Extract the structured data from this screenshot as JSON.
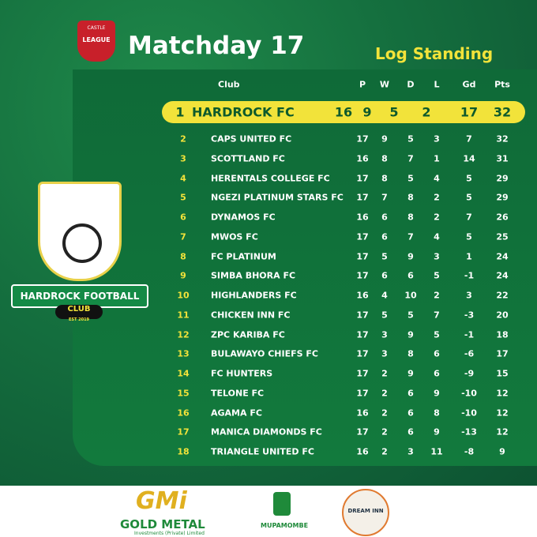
{
  "header": {
    "league_top": "CASTLE",
    "league": "LEAGUE",
    "title": "Matchday 17",
    "subtitle": "Log Standing"
  },
  "club_badge": {
    "name": "HARDROCK FOOTBALL",
    "word": "CLUB",
    "est": "EST 2019"
  },
  "table": {
    "columns": [
      "Club",
      "P",
      "W",
      "D",
      "L",
      "Gd",
      "Pts"
    ],
    "rows": [
      [
        1,
        "HARDROCK FC",
        16,
        9,
        5,
        2,
        17,
        32
      ],
      [
        2,
        "CAPS UNITED FC",
        17,
        9,
        5,
        3,
        7,
        32
      ],
      [
        3,
        "SCOTTLAND FC",
        16,
        8,
        7,
        1,
        14,
        31
      ],
      [
        4,
        "HERENTALS COLLEGE FC",
        17,
        8,
        5,
        4,
        5,
        29
      ],
      [
        5,
        "NGEZI PLATINUM STARS FC",
        17,
        7,
        8,
        2,
        5,
        29
      ],
      [
        6,
        "DYNAMOS FC",
        16,
        6,
        8,
        2,
        7,
        26
      ],
      [
        7,
        "MWOS FC",
        17,
        6,
        7,
        4,
        5,
        25
      ],
      [
        8,
        "FC PLATINUM",
        17,
        5,
        9,
        3,
        1,
        24
      ],
      [
        9,
        "SIMBA BHORA FC",
        17,
        6,
        6,
        5,
        -1,
        24
      ],
      [
        10,
        "HIGHLANDERS FC",
        16,
        4,
        10,
        2,
        3,
        22
      ],
      [
        11,
        "CHICKEN INN FC",
        17,
        5,
        5,
        7,
        -3,
        20
      ],
      [
        12,
        "ZPC KARIBA FC",
        17,
        3,
        9,
        5,
        -1,
        18
      ],
      [
        13,
        "BULAWAYO CHIEFS FC",
        17,
        3,
        8,
        6,
        -6,
        17
      ],
      [
        14,
        "FC HUNTERS",
        17,
        2,
        9,
        6,
        -9,
        15
      ],
      [
        15,
        "TELONE FC",
        17,
        2,
        6,
        9,
        -10,
        12
      ],
      [
        16,
        "AGAMA FC",
        16,
        2,
        6,
        8,
        -10,
        12
      ],
      [
        17,
        "MANICA DIAMONDS FC",
        17,
        2,
        6,
        9,
        -13,
        12
      ],
      [
        18,
        "TRIANGLE UNITED FC",
        16,
        2,
        3,
        11,
        -8,
        9
      ]
    ]
  },
  "sponsors": {
    "gmi": "GMi",
    "gold_metal": "GOLD METAL",
    "gold_metal_sub": "Investments (Private) Limited",
    "mupamombe": "MUPAMOMBE",
    "dream_inn": "DREAM INN"
  }
}
